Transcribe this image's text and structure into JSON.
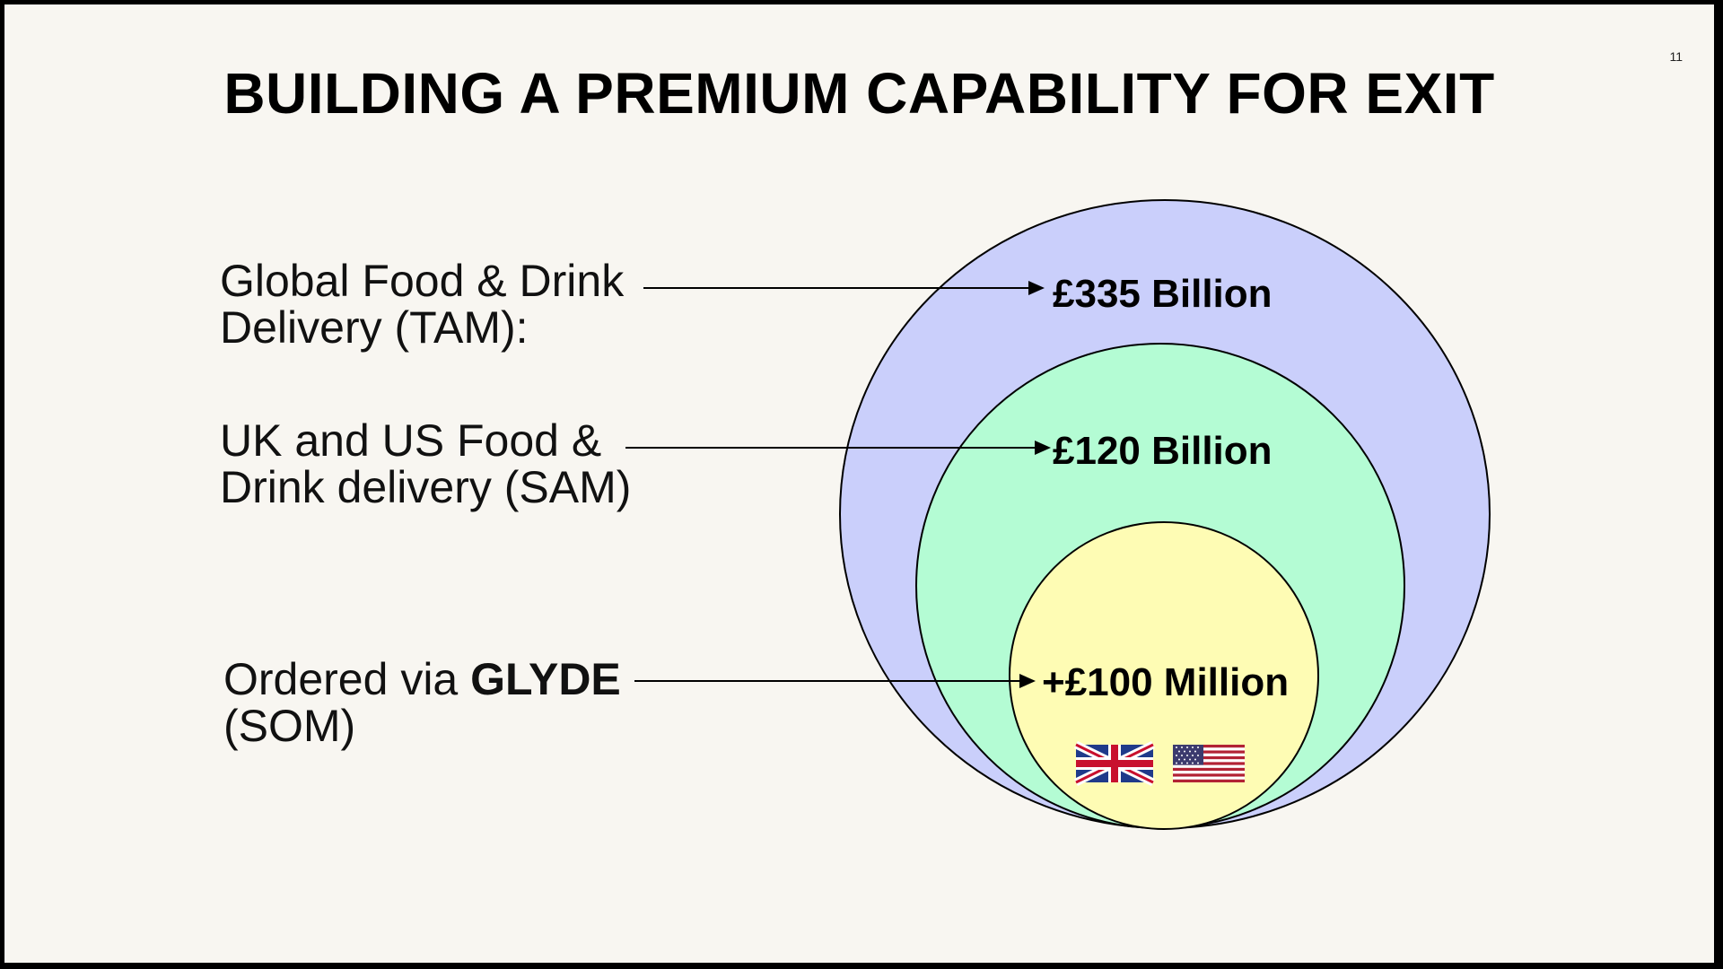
{
  "slide": {
    "page_number": "11",
    "title": "BUILDING A PREMIUM CAPABILITY FOR EXIT"
  },
  "labels": {
    "tam_line1": "Global Food & Drink",
    "tam_line2": "Delivery (TAM):",
    "sam_line1": "UK and US Food &",
    "sam_line2": "Drink delivery (SAM)",
    "som_prefix": "Ordered via ",
    "som_brand": "GLYDE",
    "som_line2": "(SOM)"
  },
  "values": {
    "tam": "£335 Billion",
    "sam": "£120 Billion",
    "som": "+£100 Million"
  },
  "colors": {
    "tam_circle": "#cacffb",
    "sam_circle": "#b4fcd4",
    "som_circle": "#fefcb4",
    "background": "#f8f6f1"
  },
  "icons": [
    "uk-flag-icon",
    "us-flag-icon"
  ]
}
